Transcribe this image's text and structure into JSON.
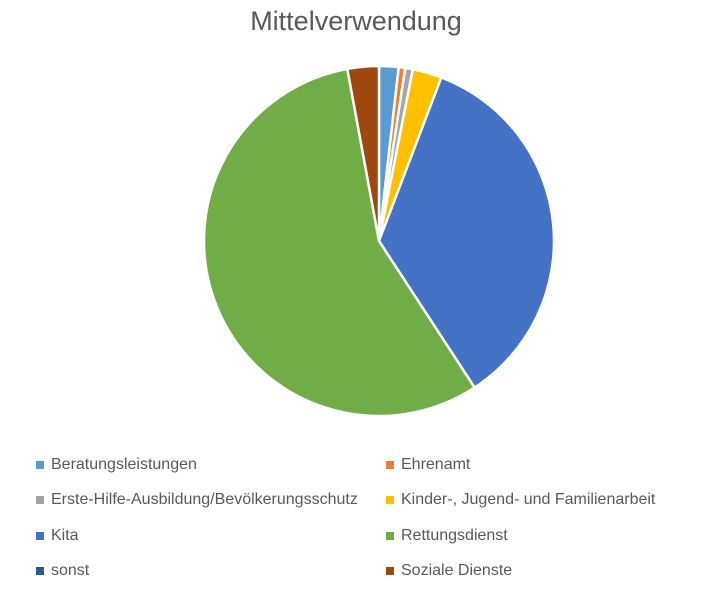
{
  "chart_data": {
    "type": "pie",
    "title": "Mittelverwendung",
    "legend_position": "bottom",
    "slices": [
      {
        "label": "Beratungsleistungen",
        "value": 1.8,
        "color": "#5B9BD5"
      },
      {
        "label": "Ehrenamt",
        "value": 0.6,
        "color": "#ED7D31"
      },
      {
        "label": "Erste-Hilfe-Ausbildung/Bevölkerungsschutz",
        "value": 0.7,
        "color": "#A5A5A5"
      },
      {
        "label": "Kinder-, Jugend- und Familienarbeit",
        "value": 2.7,
        "color": "#FFC000"
      },
      {
        "label": "Kita",
        "value": 35.0,
        "color": "#4472C4"
      },
      {
        "label": "Rettungsdienst",
        "value": 56.3,
        "color": "#70AD47"
      },
      {
        "label": "sonst",
        "value": 0.0,
        "color": "#255E91"
      },
      {
        "label": "Soziale Dienste",
        "value": 2.9,
        "color": "#9E480E"
      }
    ]
  }
}
